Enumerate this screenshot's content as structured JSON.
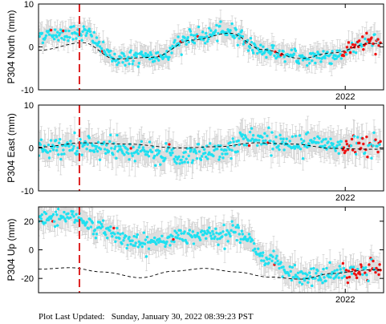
{
  "footer": {
    "label": "Plot Last Updated:",
    "datetime": "Sunday, January 30, 2022 08:39:23 PST"
  },
  "colors": {
    "data_points": "#1fe0f0",
    "recent_points": "#ee1111",
    "error_bars": "#c8c8c8",
    "model_line": "#000000",
    "event_line": "#dd2222"
  },
  "chart_data": [
    {
      "type": "scatter",
      "ylabel": "P304 North (mm)",
      "ylim": [
        -10,
        10
      ],
      "yticks": [
        -10,
        0,
        10
      ],
      "xtick_label": "2022",
      "x_range": [
        2019.6,
        2022.3
      ],
      "x_tick": 2022.0,
      "event_line_x": 2019.92,
      "recent_x_start": 2021.98,
      "error_bar_mm": 2.2,
      "noise_mm": 0.9,
      "model": {
        "x": [
          2019.6,
          2019.95,
          2020.2,
          2020.5,
          2020.8,
          2021.1,
          2021.35,
          2021.65,
          2021.9,
          2022.2
        ],
        "y": [
          -0.8,
          1.0,
          -2.8,
          -2.4,
          1.6,
          3.2,
          -0.6,
          -2.7,
          -1.4,
          0.8
        ]
      },
      "observed": {
        "x": [
          2019.6,
          2019.95,
          2020.2,
          2020.5,
          2020.8,
          2021.1,
          2021.35,
          2021.65,
          2021.9,
          2022.2
        ],
        "y": [
          2.8,
          3.4,
          -2.6,
          -2.5,
          2.1,
          3.6,
          -0.8,
          -2.6,
          -2.0,
          1.0
        ]
      }
    },
    {
      "type": "scatter",
      "ylabel": "P304 East (mm)",
      "ylim": [
        -10,
        10
      ],
      "yticks": [
        -10,
        0,
        10
      ],
      "xtick_label": "2022",
      "x_range": [
        2019.6,
        2022.3
      ],
      "x_tick": 2022.0,
      "event_line_x": 2019.92,
      "recent_x_start": 2021.98,
      "error_bar_mm": 3.0,
      "noise_mm": 1.3,
      "model": {
        "x": [
          2019.6,
          2019.95,
          2020.3,
          2020.7,
          2021.0,
          2021.3,
          2021.6,
          2021.9,
          2022.2
        ],
        "y": [
          0.2,
          1.2,
          0.9,
          0.0,
          0.3,
          1.2,
          0.9,
          -0.1,
          -0.3
        ]
      },
      "observed": {
        "x": [
          2019.6,
          2019.95,
          2020.3,
          2020.7,
          2021.0,
          2021.3,
          2021.6,
          2021.9,
          2022.2
        ],
        "y": [
          0.0,
          0.3,
          -0.8,
          -1.8,
          -0.5,
          2.2,
          1.2,
          0.4,
          0.8
        ]
      }
    },
    {
      "type": "scatter",
      "ylabel": "P304 Up (mm)",
      "ylim": [
        -30,
        30
      ],
      "yticks": [
        -20,
        0,
        20
      ],
      "xtick_label": "2022",
      "x_range": [
        2019.6,
        2022.3
      ],
      "x_tick": 2022.0,
      "event_line_x": 2019.92,
      "recent_x_start": 2021.98,
      "error_bar_mm": 8.0,
      "noise_mm": 3.0,
      "model": {
        "x": [
          2019.6,
          2019.85,
          2020.1,
          2020.4,
          2020.65,
          2020.9,
          2021.15,
          2021.4,
          2021.65,
          2021.9,
          2022.2
        ],
        "y": [
          -13.5,
          -12.5,
          -15.5,
          -19.5,
          -15.0,
          -13.0,
          -15.5,
          -19.0,
          -20.5,
          -16.5,
          -14.0
        ]
      },
      "observed": {
        "x": [
          2019.6,
          2019.85,
          2020.1,
          2020.4,
          2020.65,
          2020.9,
          2021.15,
          2021.4,
          2021.65,
          2021.9,
          2022.2
        ],
        "y": [
          22.0,
          24.0,
          14.0,
          4.0,
          8.0,
          12.0,
          12.0,
          -6.0,
          -20.0,
          -17.0,
          -14.0
        ]
      }
    }
  ]
}
